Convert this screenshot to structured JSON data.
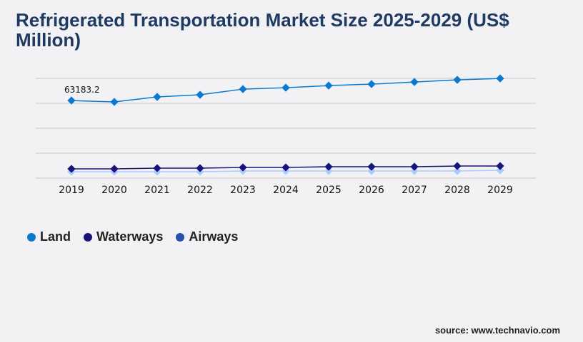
{
  "chart_data": {
    "type": "line",
    "title": "Refrigerated Transportation Market Size 2025-2029 (US$ Million)",
    "categories": [
      "2019",
      "2020",
      "2021",
      "2022",
      "2023",
      "2024",
      "2025",
      "2026",
      "2027",
      "2028",
      "2029"
    ],
    "ylim": [
      0,
      81200
    ],
    "grid": true,
    "legend_position": "bottom-left",
    "series": [
      {
        "name": "Land",
        "color": "#0a7ad1",
        "values": [
          63183.2,
          62030,
          66090,
          67830,
          72460,
          73620,
          75360,
          76520,
          78260,
          80000,
          81160
        ],
        "data_labels": {
          "0": "63183.2"
        }
      },
      {
        "name": "Waterways",
        "color": "#1a137a",
        "values": [
          7540,
          7540,
          8120,
          8120,
          8700,
          8700,
          9280,
          9280,
          9280,
          9860,
          9860
        ]
      },
      {
        "name": "Airways",
        "color": "#a9cbff",
        "legend_color": "#2b4fb0",
        "values": [
          5220,
          5220,
          5220,
          5220,
          5800,
          5800,
          5800,
          5800,
          5800,
          5800,
          6380
        ]
      }
    ]
  },
  "source": "source: www.technavio.com"
}
